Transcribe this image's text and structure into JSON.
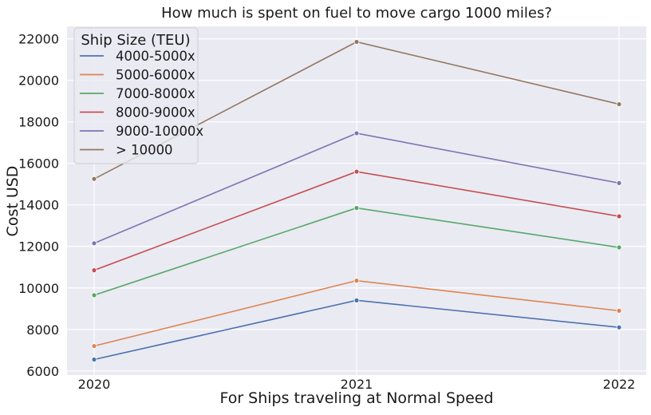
{
  "chart_data": {
    "type": "line",
    "title": "How much is spent on fuel to move cargo 1000 miles?",
    "xlabel": "For Ships traveling at Normal Speed",
    "ylabel": "Cost USD",
    "x": [
      2020,
      2021,
      2022
    ],
    "x_tick_labels": [
      "2020",
      "2021",
      "2022"
    ],
    "ylim": [
      5800,
      22600
    ],
    "y_ticks": [
      6000,
      8000,
      10000,
      12000,
      14000,
      16000,
      18000,
      20000,
      22000
    ],
    "grid": true,
    "legend_title": "Ship Size (TEU)",
    "legend_position": "top-left",
    "series": [
      {
        "name": "4000-5000x",
        "color": "#4c72b0",
        "values": [
          6550,
          9400,
          8100
        ]
      },
      {
        "name": "5000-6000x",
        "color": "#dd8452",
        "values": [
          7200,
          10350,
          8900
        ]
      },
      {
        "name": "7000-8000x",
        "color": "#55a868",
        "values": [
          9650,
          13850,
          11950
        ]
      },
      {
        "name": "8000-9000x",
        "color": "#c44e52",
        "values": [
          10850,
          15600,
          13450
        ]
      },
      {
        "name": "9000-10000x",
        "color": "#8172b3",
        "values": [
          12150,
          17450,
          15050
        ]
      },
      {
        "name": "> 10000",
        "color": "#937860",
        "values": [
          15250,
          21850,
          18850
        ]
      }
    ]
  }
}
